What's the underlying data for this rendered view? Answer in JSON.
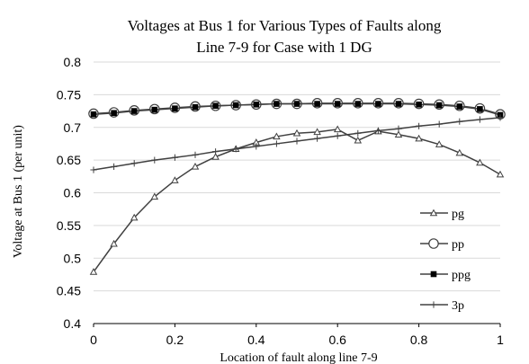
{
  "chart_data": {
    "type": "line",
    "title_line1": "Voltages at Bus 1 for Various Types of  Faults along",
    "title_line2": "Line 7-9 for Case  with 1 DG",
    "xlabel": "Location  of fault along line 7-9",
    "ylabel": "Voltage at Bus 1 (per unit)",
    "xlim": [
      0,
      1
    ],
    "ylim": [
      0.4,
      0.8
    ],
    "xticks": [
      "0",
      "0.2",
      "0.4",
      "0.6",
      "0.8",
      "1"
    ],
    "yticks": [
      "0.4",
      "0.45",
      "0.5",
      "0.55",
      "0.6",
      "0.65",
      "0.7",
      "0.75",
      "0.8"
    ],
    "grid": "horizontal",
    "legend_position": "right",
    "x": [
      0,
      0.05,
      0.1,
      0.15,
      0.2,
      0.25,
      0.3,
      0.35,
      0.4,
      0.45,
      0.5,
      0.55,
      0.6,
      0.65,
      0.7,
      0.75,
      0.8,
      0.85,
      0.9,
      0.95,
      1
    ],
    "series": [
      {
        "name": "pg",
        "marker": "triangle",
        "values": [
          0.479,
          0.522,
          0.562,
          0.594,
          0.619,
          0.64,
          0.655,
          0.667,
          0.677,
          0.686,
          0.691,
          0.693,
          0.697,
          0.68,
          0.694,
          0.689,
          0.683,
          0.674,
          0.661,
          0.646,
          0.628
        ]
      },
      {
        "name": "pp",
        "marker": "circle",
        "values": [
          0.721,
          0.723,
          0.726,
          0.728,
          0.73,
          0.732,
          0.733,
          0.734,
          0.735,
          0.736,
          0.736,
          0.737,
          0.737,
          0.737,
          0.737,
          0.737,
          0.736,
          0.735,
          0.733,
          0.729,
          0.72
        ]
      },
      {
        "name": "ppg",
        "marker": "square",
        "values": [
          0.72,
          0.722,
          0.725,
          0.727,
          0.729,
          0.731,
          0.733,
          0.734,
          0.735,
          0.736,
          0.736,
          0.736,
          0.736,
          0.736,
          0.736,
          0.736,
          0.735,
          0.734,
          0.732,
          0.728,
          0.719
        ]
      },
      {
        "name": "3p",
        "marker": "plus",
        "values": [
          0.635,
          0.64,
          0.645,
          0.65,
          0.654,
          0.658,
          0.663,
          0.667,
          0.671,
          0.675,
          0.679,
          0.683,
          0.687,
          0.691,
          0.695,
          0.698,
          0.702,
          0.705,
          0.709,
          0.712,
          0.715
        ]
      }
    ]
  }
}
